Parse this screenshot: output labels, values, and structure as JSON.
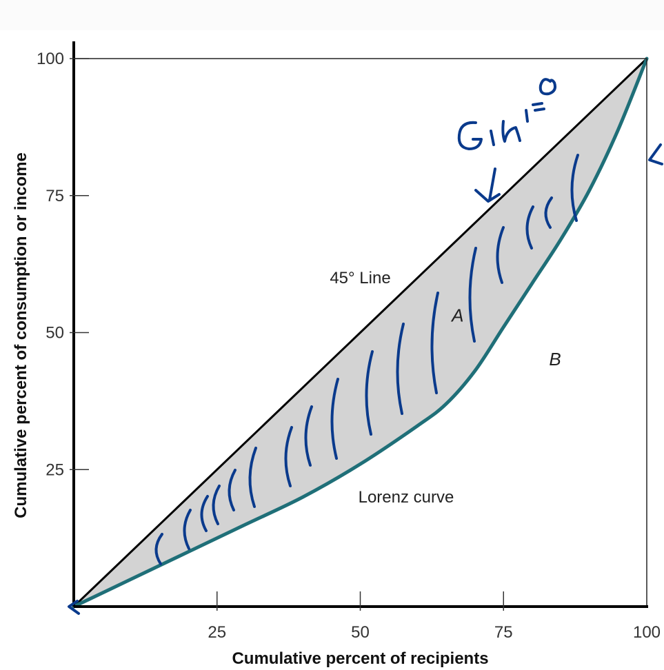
{
  "chart_data": {
    "type": "line",
    "title": "",
    "xlabel": "Cumulative percent of recipients",
    "ylabel": "Cumulative percent of consumption or income",
    "xlim": [
      0,
      100
    ],
    "ylim": [
      0,
      100
    ],
    "x_ticks": [
      "25",
      "50",
      "75",
      "100"
    ],
    "y_ticks": [
      "25",
      "50",
      "75",
      "100"
    ],
    "series": [
      {
        "name": "45° Line",
        "x": [
          0,
          100
        ],
        "y": [
          0,
          100
        ],
        "color": "#000000"
      },
      {
        "name": "Lorenz curve",
        "x": [
          0,
          10,
          20,
          30,
          40,
          50,
          60,
          65,
          70,
          75,
          80,
          85,
          90,
          95,
          100
        ],
        "y": [
          0,
          5,
          10,
          15,
          20,
          26,
          33,
          37,
          43,
          51,
          59,
          67,
          76,
          87,
          100
        ],
        "color": "#1f6f78"
      }
    ],
    "annotations": [
      {
        "text": "45° Line",
        "x": 50,
        "y": 59
      },
      {
        "text": "A",
        "x": 67,
        "y": 52
      },
      {
        "text": "B",
        "x": 84,
        "y": 44
      },
      {
        "text": "Lorenz curve",
        "x": 58,
        "y": 19
      }
    ],
    "handwriting": {
      "text": "Gini = 0",
      "color": "#0a3a8c"
    },
    "fill_between_color": "#d3d3d3",
    "grid": false
  }
}
